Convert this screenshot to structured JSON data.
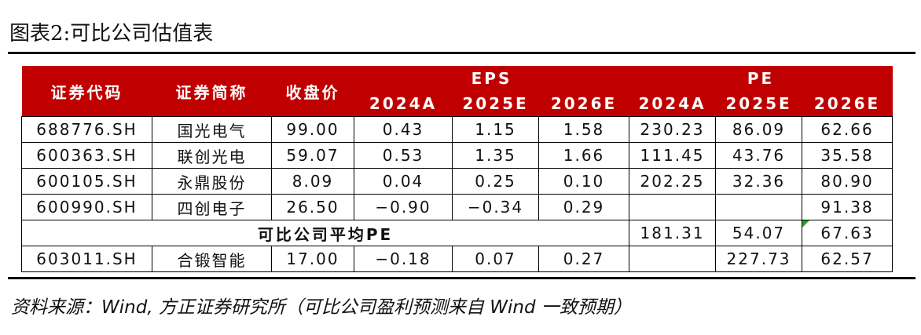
{
  "header": {
    "title": "图表2:可比公司估值表"
  },
  "table": {
    "columns": [
      "证券代码",
      "证券简称",
      "收盘价"
    ],
    "groups": [
      {
        "label": "EPS",
        "years": [
          "2024A",
          "2025E",
          "2026E"
        ]
      },
      {
        "label": "PE",
        "years": [
          "2024A",
          "2025E",
          "2026E"
        ]
      }
    ],
    "rows": [
      [
        "688776.SH",
        "国光电气",
        "99.00",
        "0.43",
        "1.15",
        "1.58",
        "230.23",
        "86.09",
        "62.66"
      ],
      [
        "600363.SH",
        "联创光电",
        "59.07",
        "0.53",
        "1.35",
        "1.66",
        "111.45",
        "43.76",
        "35.58"
      ],
      [
        "600105.SH",
        "永鼎股份",
        "8.09",
        "0.04",
        "0.25",
        "0.10",
        "202.25",
        "32.36",
        "80.90"
      ],
      [
        "600990.SH",
        "四创电子",
        "26.50",
        "−0.90",
        "−0.34",
        "0.29",
        null,
        null,
        "91.38"
      ]
    ],
    "average": {
      "label": "可比公司平均PE",
      "pe": [
        "181.31",
        "54.07",
        "67.63"
      ]
    },
    "target_rows": [
      [
        "603011.SH",
        "合锻智能",
        "17.00",
        "−0.18",
        "0.07",
        "0.27",
        null,
        "227.73",
        "62.57"
      ]
    ]
  },
  "footer": {
    "source": "资料来源：Wind, 方正证券研究所（可比公司盈利预测来自 Wind 一致预期）"
  }
}
